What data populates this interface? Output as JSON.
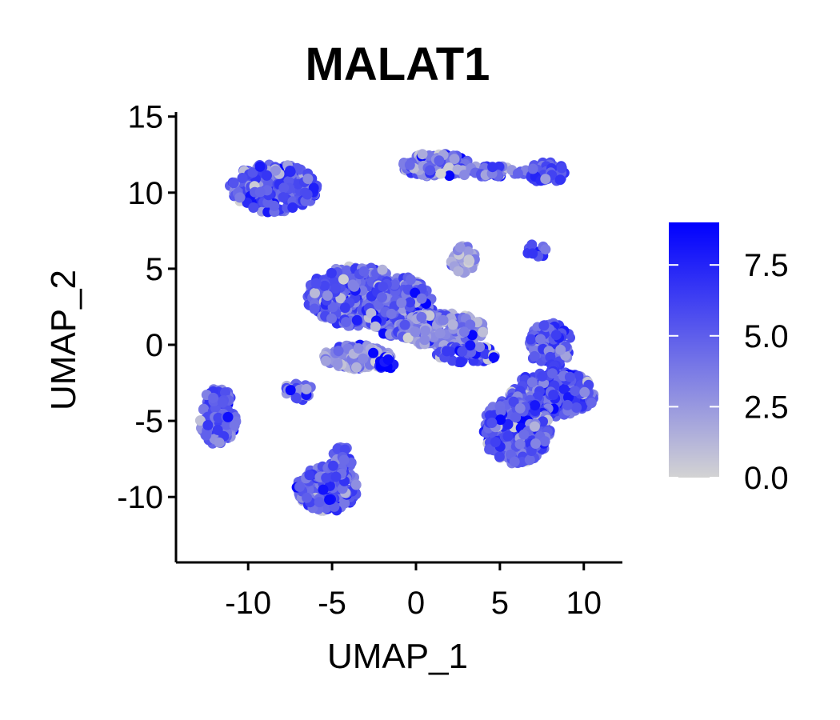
{
  "chart_data": {
    "type": "scatter",
    "title": "MALAT1",
    "xlabel": "UMAP_1",
    "ylabel": "UMAP_2",
    "xlim": [
      -14.3,
      12.3
    ],
    "ylim": [
      -14.3,
      15.3
    ],
    "x_ticks": [
      -10,
      -5,
      0,
      5,
      10
    ],
    "x_tick_labels": [
      "-10",
      "-5",
      "0",
      "5",
      "10"
    ],
    "y_ticks": [
      -10,
      -5,
      0,
      5,
      10,
      15
    ],
    "y_tick_labels": [
      "-10",
      "-5",
      "0",
      "5",
      "10",
      "15"
    ],
    "grid": false,
    "legend": {
      "placement": "right",
      "type": "colorbar",
      "min": 0,
      "max": 9,
      "ticks": [
        0,
        2.5,
        5,
        7.5
      ],
      "tick_labels": [
        "0.0",
        "2.5",
        "5.0",
        "7.5"
      ],
      "low_color": "#d3d3d3",
      "high_color": "#0000ff"
    },
    "clusters": [
      {
        "cx": -8.5,
        "cy": 10.3,
        "rx": 2.6,
        "ry": 1.6,
        "n": 260,
        "mean": 5.2
      },
      {
        "cx": 1.2,
        "cy": 11.8,
        "rx": 2.0,
        "ry": 0.8,
        "n": 150,
        "mean": 4.0
      },
      {
        "cx": 4.5,
        "cy": 11.4,
        "rx": 2.2,
        "ry": 0.35,
        "n": 50,
        "mean": 4.6
      },
      {
        "cx": 7.8,
        "cy": 11.3,
        "rx": 1.1,
        "ry": 0.7,
        "n": 60,
        "mean": 5.2
      },
      {
        "cx": 2.8,
        "cy": 5.6,
        "rx": 0.8,
        "ry": 0.9,
        "n": 45,
        "mean": 2.5
      },
      {
        "cx": 7.2,
        "cy": 6.2,
        "rx": 0.6,
        "ry": 0.6,
        "n": 10,
        "mean": 5.8
      },
      {
        "cx": -3.5,
        "cy": 3.2,
        "rx": 3.0,
        "ry": 2.0,
        "n": 420,
        "mean": 5.0
      },
      {
        "cx": -1.0,
        "cy": 2.5,
        "rx": 2.0,
        "ry": 2.0,
        "n": 220,
        "mean": 5.2
      },
      {
        "cx": 1.5,
        "cy": 1.0,
        "rx": 2.6,
        "ry": 1.1,
        "n": 260,
        "mean": 3.2
      },
      {
        "cx": -3.5,
        "cy": -0.8,
        "rx": 2.0,
        "ry": 0.8,
        "n": 140,
        "mean": 3.0
      },
      {
        "cx": -7.0,
        "cy": -3.0,
        "rx": 0.8,
        "ry": 0.7,
        "n": 30,
        "mean": 4.0
      },
      {
        "cx": 3.0,
        "cy": -0.6,
        "rx": 1.8,
        "ry": 0.6,
        "n": 60,
        "mean": 6.0
      },
      {
        "cx": -1.8,
        "cy": -1.2,
        "rx": 0.5,
        "ry": 0.4,
        "n": 14,
        "mean": 8.2
      },
      {
        "cx": 8.0,
        "cy": 0.0,
        "rx": 1.3,
        "ry": 1.5,
        "n": 130,
        "mean": 5.3
      },
      {
        "cx": 8.2,
        "cy": -3.2,
        "rx": 2.6,
        "ry": 1.5,
        "n": 280,
        "mean": 5.4
      },
      {
        "cx": 6.0,
        "cy": -5.6,
        "rx": 2.0,
        "ry": 2.2,
        "n": 300,
        "mean": 5.4
      },
      {
        "cx": -11.8,
        "cy": -4.7,
        "rx": 1.1,
        "ry": 1.9,
        "n": 130,
        "mean": 5.0
      },
      {
        "cx": -5.3,
        "cy": -9.4,
        "rx": 1.8,
        "ry": 1.6,
        "n": 200,
        "mean": 5.0
      },
      {
        "cx": -4.4,
        "cy": -7.8,
        "rx": 0.6,
        "ry": 1.2,
        "n": 40,
        "mean": 5.2
      }
    ],
    "seed": 7
  }
}
